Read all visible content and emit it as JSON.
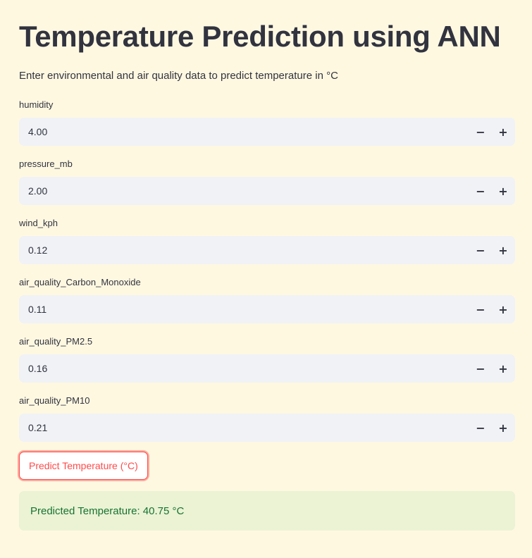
{
  "header": {
    "title": "Temperature Prediction using ANN",
    "subtitle": "Enter environmental and air quality data to predict temperature in °C"
  },
  "fields": [
    {
      "label": "humidity",
      "value": "4.00"
    },
    {
      "label": "pressure_mb",
      "value": "2.00"
    },
    {
      "label": "wind_kph",
      "value": "0.12"
    },
    {
      "label": "air_quality_Carbon_Monoxide",
      "value": "0.11"
    },
    {
      "label": "air_quality_PM2.5",
      "value": "0.16"
    },
    {
      "label": "air_quality_PM10",
      "value": "0.21"
    }
  ],
  "stepper": {
    "minus_icon": "minus-icon",
    "plus_icon": "plus-icon",
    "minus_glyph": "−",
    "plus_glyph": "+"
  },
  "predict_button": {
    "label": "Predict Temperature (°C)"
  },
  "result": {
    "text": "Predicted Temperature: 40.75 °C"
  },
  "colors": {
    "background": "#fff8e1",
    "accent": "#ff4b4b",
    "input_bg": "#f0f2f6",
    "success_text": "#177233",
    "text": "#31333f"
  }
}
